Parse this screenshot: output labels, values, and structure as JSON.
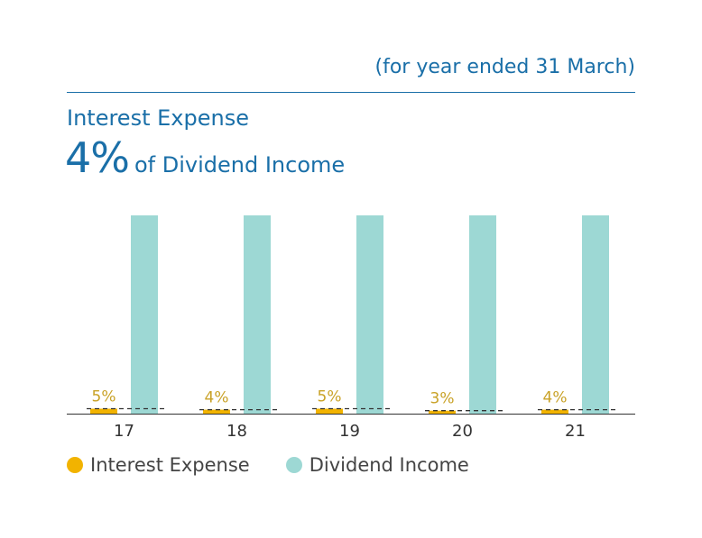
{
  "header": {
    "period_note": "(for year ended 31 March)",
    "title": "Interest Expense",
    "headline_value": "4%",
    "headline_text": "of Dividend Income"
  },
  "colors": {
    "interest": "#f2b300",
    "dividend": "#9dd8d4",
    "accent": "#1a6fa8",
    "label": "#c9a227"
  },
  "chart_data": {
    "type": "bar",
    "categories": [
      "17",
      "18",
      "19",
      "20",
      "21"
    ],
    "series": [
      {
        "name": "Interest Expense",
        "values": [
          5,
          4,
          5,
          3,
          4
        ]
      },
      {
        "name": "Dividend Income",
        "values": [
          100,
          100,
          100,
          100,
          100
        ]
      }
    ],
    "data_labels": [
      "5%",
      "4%",
      "5%",
      "3%",
      "4%"
    ],
    "ylim": [
      0,
      100
    ],
    "grid": false,
    "legend": "bottom-left"
  }
}
